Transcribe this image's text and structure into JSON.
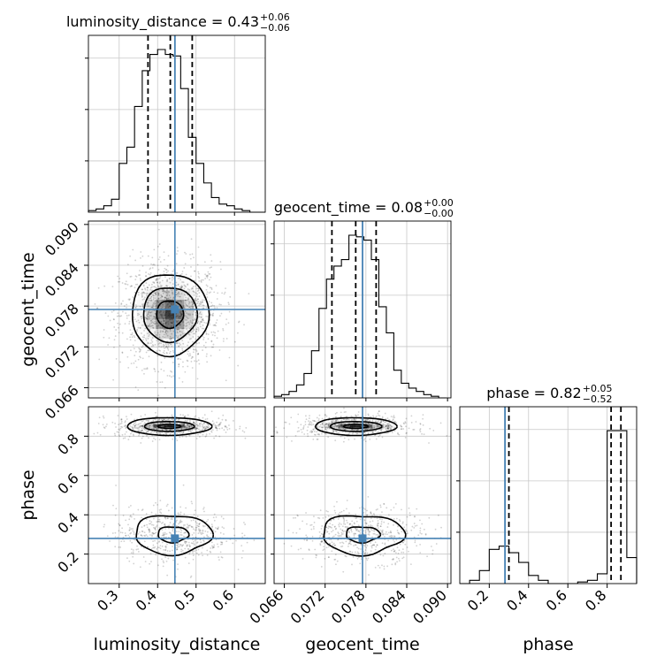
{
  "chart_data": {
    "type": "corner",
    "parameters": [
      "luminosity_distance",
      "geocent_time",
      "phase"
    ],
    "titles": [
      {
        "name": "luminosity_distance",
        "median": "0.43",
        "plus": "+0.06",
        "minus": "−0.06"
      },
      {
        "name": "geocent_time",
        "median": "0.08",
        "plus": "+0.00",
        "minus": "−0.00"
      },
      {
        "name": "phase",
        "median": "0.82",
        "plus": "+0.05",
        "minus": "−0.52"
      }
    ],
    "ranges": {
      "luminosity_distance": [
        0.22,
        0.68
      ],
      "geocent_time": [
        0.0645,
        0.0905
      ],
      "phase": [
        0.05,
        0.95
      ]
    },
    "ticks": {
      "luminosity_distance": [
        0.3,
        0.4,
        0.5,
        0.6
      ],
      "geocent_time": [
        0.066,
        0.072,
        0.078,
        0.084,
        0.09
      ],
      "phase": [
        0.2,
        0.4,
        0.6,
        0.8
      ]
    },
    "tick_labels": {
      "luminosity_distance": [
        "0.3",
        "0.4",
        "0.5",
        "0.6"
      ],
      "geocent_time": [
        "0.066",
        "0.072",
        "0.078",
        "0.084",
        "0.090"
      ],
      "phase": [
        "0.2",
        "0.4",
        "0.6",
        "0.8"
      ]
    },
    "truths": {
      "luminosity_distance": 0.445,
      "geocent_time": 0.0775,
      "phase": 0.28
    },
    "quantiles": {
      "luminosity_distance": [
        0.375,
        0.433,
        0.49
      ],
      "geocent_time": [
        0.073,
        0.0765,
        0.0795
      ],
      "phase": [
        0.3,
        0.82,
        0.87
      ]
    },
    "histograms": {
      "luminosity_distance": {
        "edges": [
          0.22,
          0.24,
          0.26,
          0.28,
          0.3,
          0.32,
          0.34,
          0.36,
          0.38,
          0.4,
          0.42,
          0.44,
          0.46,
          0.48,
          0.5,
          0.52,
          0.54,
          0.56,
          0.58,
          0.6,
          0.62,
          0.64,
          0.66,
          0.68
        ],
        "counts": [
          0.01,
          0.02,
          0.04,
          0.08,
          0.3,
          0.4,
          0.65,
          0.87,
          0.97,
          1.0,
          0.97,
          0.96,
          0.76,
          0.46,
          0.3,
          0.18,
          0.09,
          0.05,
          0.04,
          0.02,
          0.01,
          0.0,
          0.0
        ]
      },
      "geocent_time": {
        "edges": [
          0.0645,
          0.0656,
          0.0667,
          0.0678,
          0.0689,
          0.07,
          0.0711,
          0.0722,
          0.0733,
          0.0744,
          0.0755,
          0.0766,
          0.0777,
          0.0788,
          0.0799,
          0.081,
          0.0821,
          0.0832,
          0.0843,
          0.0854,
          0.0865,
          0.0876,
          0.0887,
          0.0898
        ],
        "counts": [
          0.01,
          0.02,
          0.04,
          0.08,
          0.15,
          0.29,
          0.55,
          0.73,
          0.81,
          0.85,
          1.0,
          0.99,
          0.97,
          0.85,
          0.56,
          0.4,
          0.17,
          0.09,
          0.06,
          0.04,
          0.02,
          0.01,
          0.0
        ]
      },
      "phase": {
        "edges": [
          0.05,
          0.1,
          0.15,
          0.2,
          0.25,
          0.3,
          0.35,
          0.4,
          0.45,
          0.5,
          0.55,
          0.6,
          0.65,
          0.7,
          0.75,
          0.8,
          0.85,
          0.9,
          0.95
        ],
        "counts": [
          0.0,
          0.02,
          0.08,
          0.21,
          0.23,
          0.19,
          0.13,
          0.05,
          0.02,
          0.0,
          0.0,
          0.0,
          0.01,
          0.02,
          0.06,
          0.94,
          0.94,
          0.16
        ]
      }
    },
    "contours_2d": {
      "geocent_time_vs_luminosity_distance": {
        "center": [
          0.432,
          0.0768
        ],
        "levels_radius": [
          [
            0.035,
            0.002
          ],
          [
            0.07,
            0.004
          ],
          [
            0.1,
            0.006
          ]
        ]
      },
      "phase_vs_luminosity_distance": {
        "modes": [
          {
            "center": [
              0.43,
              0.85
            ],
            "levels_radius": [
              [
                0.03,
                0.01
              ],
              [
                0.065,
                0.025
              ],
              [
                0.11,
                0.045
              ]
            ]
          },
          {
            "center": [
              0.44,
              0.3
            ],
            "levels_radius": [
              [
                0.04,
                0.04
              ],
              [
                0.1,
                0.1
              ]
            ]
          }
        ]
      },
      "phase_vs_geocent_time": {
        "modes": [
          {
            "center": [
              0.0765,
              0.85
            ],
            "levels_radius": [
              [
                0.0018,
                0.01
              ],
              [
                0.0038,
                0.025
              ],
              [
                0.006,
                0.045
              ]
            ]
          },
          {
            "center": [
              0.0775,
              0.3
            ],
            "levels_radius": [
              [
                0.0025,
                0.04
              ],
              [
                0.006,
                0.1
              ]
            ]
          }
        ]
      }
    },
    "grid": true,
    "truth_color": "#4682b4",
    "hist_color": "#000000"
  }
}
